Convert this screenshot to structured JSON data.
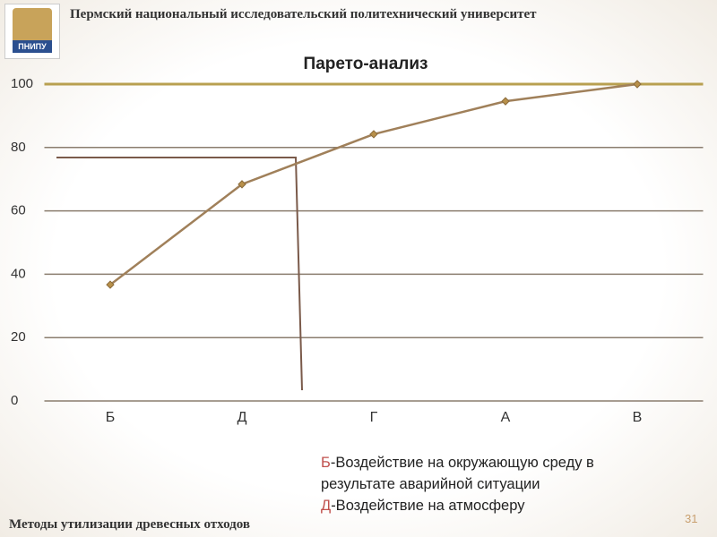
{
  "header": {
    "university": "Пермский национальный исследовательский политехнический университет",
    "logo": "ПНИПУ"
  },
  "chart_data": {
    "type": "line",
    "title": "Парето-анализ",
    "categories": [
      "Б",
      "Д",
      "Г",
      "А",
      "В"
    ],
    "values": [
      36.7,
      68.4,
      84.2,
      94.6,
      100
    ],
    "color": "#a0805a",
    "ylim": [
      0,
      100
    ],
    "yticks": [
      0,
      20,
      40,
      60,
      80,
      100
    ],
    "grid": true
  },
  "notes": [
    {
      "key": "Б",
      "text": "-Воздействие на окружающую среду в результате аварийной ситуации"
    },
    {
      "key": "Д",
      "text": "-Воздействие на атмосферу"
    }
  ],
  "footer": "Методы утилизации древесных отходов",
  "page_number": "31"
}
